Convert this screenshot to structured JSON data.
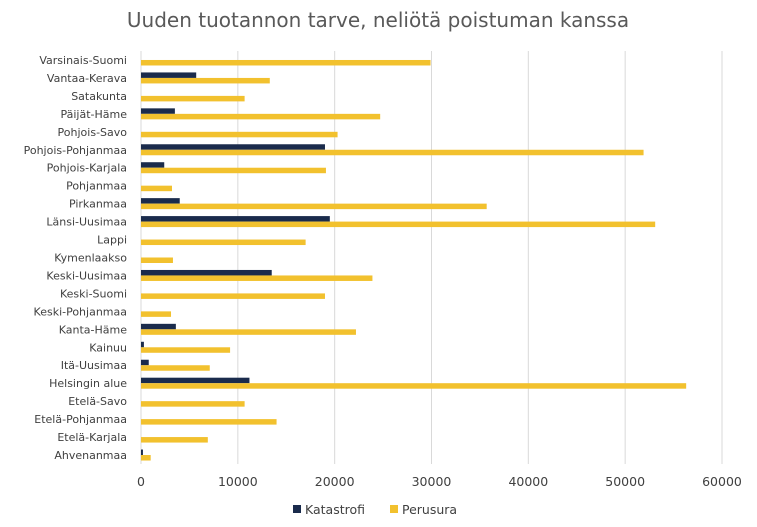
{
  "chart_data": {
    "type": "bar",
    "orientation": "horizontal",
    "title": "Uuden tuotannon tarve, neliötä poistuman kanssa",
    "xlabel": "",
    "ylabel": "",
    "xlim": [
      0,
      60000
    ],
    "x_ticks": [
      "0",
      "10000",
      "20000",
      "30000",
      "40000",
      "50000",
      "60000"
    ],
    "grid": "vertical",
    "legend_position": "bottom",
    "categories": [
      "Varsinais-Suomi",
      "Vantaa-Kerava",
      "Satakunta",
      "Päijät-Häme",
      "Pohjois-Savo",
      "Pohjois-Pohjanmaa",
      "Pohjois-Karjala",
      "Pohjanmaa",
      "Pirkanmaa",
      "Länsi-Uusimaa",
      "Lappi",
      "Kymenlaakso",
      "Keski-Uusimaa",
      "Keski-Suomi",
      "Keski-Pohjanmaa",
      "Kanta-Häme",
      "Kainuu",
      "Itä-Uusimaa",
      "Helsingin alue",
      "Etelä-Savo",
      "Etelä-Pohjanmaa",
      "Etelä-Karjala",
      "Ahvenanmaa"
    ],
    "series": [
      {
        "name": "Katastrofi",
        "color": "#1a2b4c",
        "values": [
          0,
          5700,
          0,
          3500,
          0,
          19000,
          2400,
          0,
          4000,
          19500,
          0,
          0,
          13500,
          0,
          0,
          3600,
          300,
          800,
          11200,
          0,
          0,
          0,
          200
        ]
      },
      {
        "name": "Perusura",
        "color": "#f2c12e",
        "values": [
          29900,
          13300,
          10700,
          24700,
          20300,
          51900,
          19100,
          3200,
          35700,
          53100,
          17000,
          3300,
          23900,
          19000,
          3100,
          22200,
          9200,
          7100,
          56300,
          10700,
          14000,
          6900,
          1000
        ]
      }
    ]
  }
}
